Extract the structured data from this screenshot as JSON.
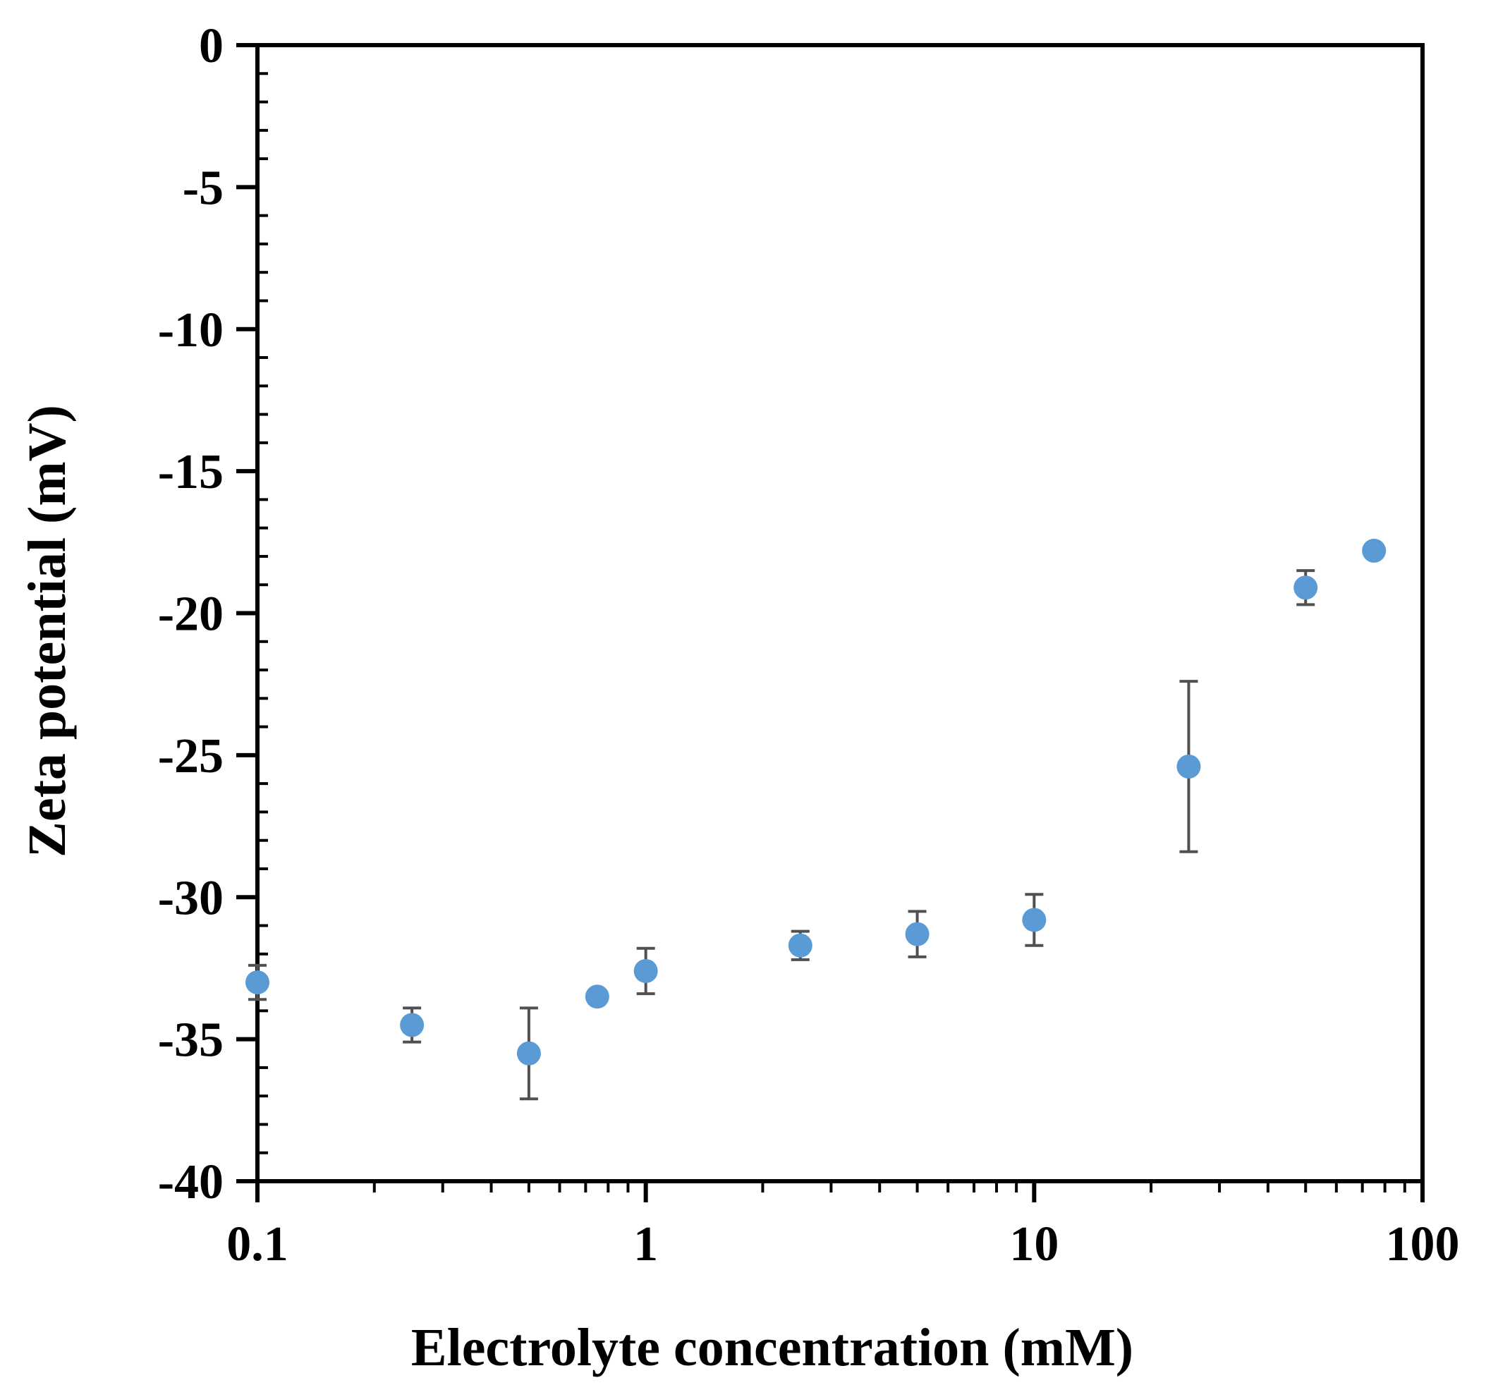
{
  "chart_data": {
    "type": "scatter",
    "title": "",
    "xlabel": "Electrolyte concentration (mM)",
    "ylabel": "Zeta potential (mV)",
    "xscale": "log",
    "xlim": [
      0.1,
      100
    ],
    "ylim": [
      -40,
      0
    ],
    "x_ticks": [
      0.1,
      1,
      10,
      100
    ],
    "x_tick_labels": [
      "0.1",
      "1",
      "10",
      "100"
    ],
    "y_ticks": [
      0,
      -5,
      -10,
      -15,
      -20,
      -25,
      -30,
      -35,
      -40
    ],
    "y_tick_labels": [
      "0",
      "-5",
      "-10",
      "-15",
      "-20",
      "-25",
      "-30",
      "-35",
      "-40"
    ],
    "y_minor_step": 1,
    "grid": false,
    "legend": "none",
    "series": [
      {
        "name": "Zeta potential",
        "color": "#5b9bd5",
        "errorbar_color": "#505050",
        "x": [
          0.1,
          0.25,
          0.5,
          0.75,
          1,
          2.5,
          5,
          10,
          25,
          50,
          75
        ],
        "y": [
          -33.0,
          -34.5,
          -35.5,
          -33.5,
          -32.6,
          -31.7,
          -31.3,
          -30.8,
          -25.4,
          -19.1,
          -17.8
        ],
        "yerr": [
          0.6,
          0.6,
          1.6,
          0.2,
          0.8,
          0.5,
          0.8,
          0.9,
          3.0,
          0.6,
          0.2
        ]
      }
    ]
  }
}
